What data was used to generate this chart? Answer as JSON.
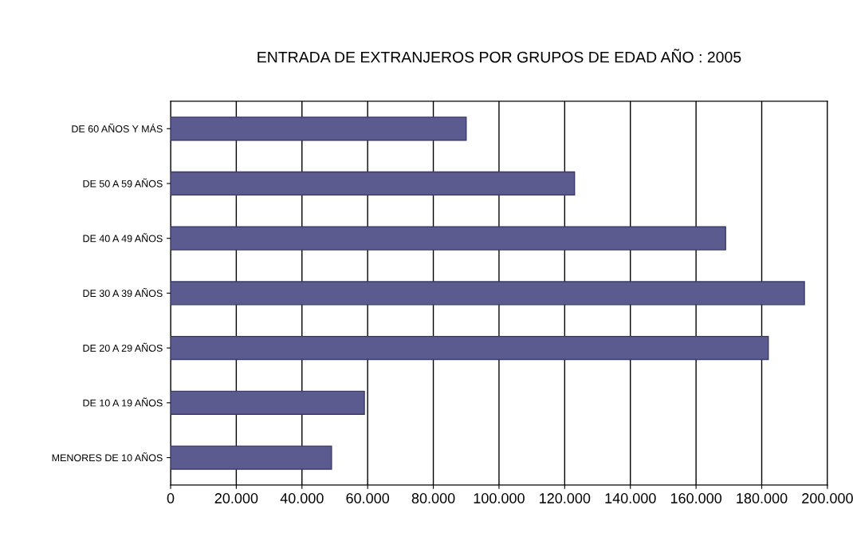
{
  "chart_data": {
    "type": "bar",
    "orientation": "horizontal",
    "title": "ENTRADA DE EXTRANJEROS POR GRUPOS DE EDAD AÑO : 2005",
    "categories": [
      "DE 60 AÑOS Y MÁS",
      "DE 50 A 59 AÑOS",
      "DE 40 A 49 AÑOS",
      "DE 30 A 39 AÑOS",
      "DE 20 A 29 AÑOS",
      "DE 10 A 19 AÑOS",
      "MENORES DE 10 AÑOS"
    ],
    "values": [
      90000,
      123000,
      169000,
      193000,
      182000,
      59000,
      49000
    ],
    "color": "#5b5b8f",
    "xlim": [
      0,
      200000
    ],
    "xticks": [
      0,
      {
        "value": 20000,
        "label": "20.000"
      },
      {
        "value": 40000,
        "label": "40.000"
      },
      {
        "value": 60000,
        "label": "60.000"
      },
      {
        "value": 80000,
        "label": "80.000"
      },
      {
        "value": 100000,
        "label": "100.000"
      },
      {
        "value": 120000,
        "label": "120.000"
      },
      {
        "value": 140000,
        "label": "140.000"
      },
      {
        "value": 160000,
        "label": "160.000"
      },
      {
        "value": 180000,
        "label": "180.000"
      },
      {
        "value": 200000,
        "label": "200.000"
      }
    ],
    "grid": "x"
  }
}
